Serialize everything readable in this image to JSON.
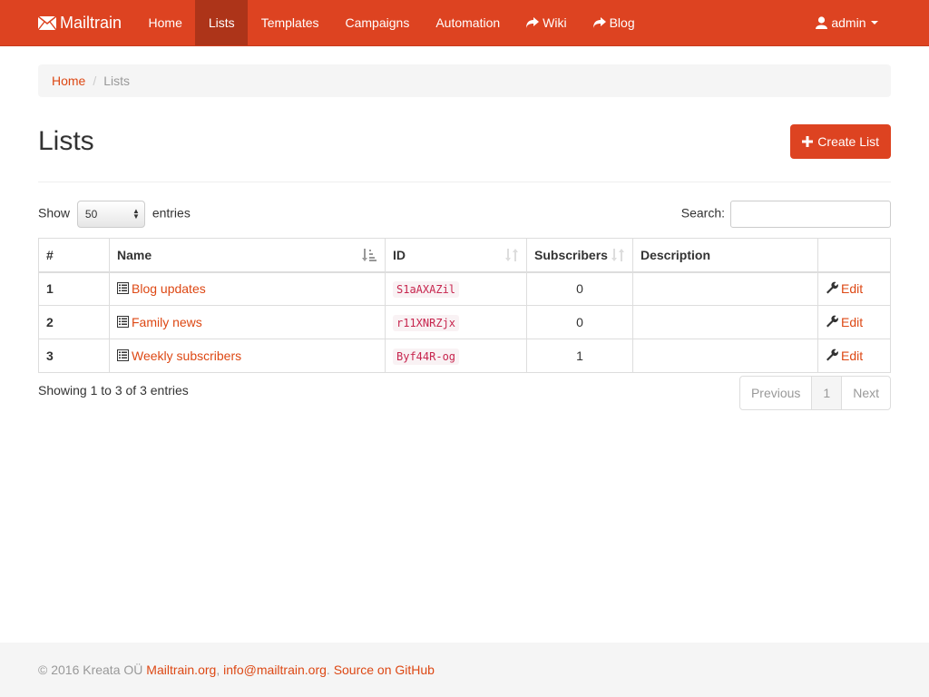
{
  "colors": {
    "brand": "#dd4321",
    "active_nav": "#ad3419",
    "link": "#dd4814"
  },
  "navbar": {
    "brand": "Mailtrain",
    "items": [
      {
        "label": "Home"
      },
      {
        "label": "Lists",
        "active": true
      },
      {
        "label": "Templates"
      },
      {
        "label": "Campaigns"
      },
      {
        "label": "Automation"
      },
      {
        "label": "Wiki",
        "icon": "share-icon"
      },
      {
        "label": "Blog",
        "icon": "share-icon"
      }
    ],
    "user": "admin"
  },
  "breadcrumb": {
    "home": "Home",
    "current": "Lists"
  },
  "page": {
    "title": "Lists",
    "create_button": "Create List"
  },
  "controls": {
    "show_label": "Show",
    "page_size": "50",
    "entries_label": "entries",
    "search_label": "Search:",
    "search_value": ""
  },
  "table": {
    "headers": [
      "#",
      "Name",
      "ID",
      "Subscribers",
      "Description",
      ""
    ],
    "rows": [
      {
        "num": "1",
        "name": "Blog updates",
        "id": "S1aAXAZil",
        "subscribers": "0",
        "description": "",
        "action": "Edit"
      },
      {
        "num": "2",
        "name": "Family news",
        "id": "r11XNRZjx",
        "subscribers": "0",
        "description": "",
        "action": "Edit"
      },
      {
        "num": "3",
        "name": "Weekly subscribers",
        "id": "Byf44R-og",
        "subscribers": "1",
        "description": "",
        "action": "Edit"
      }
    ]
  },
  "info": "Showing 1 to 3 of 3 entries",
  "pagination": {
    "previous": "Previous",
    "page": "1",
    "next": "Next"
  },
  "footer": {
    "copyright": "© 2016 Kreata OÜ",
    "site": "Mailtrain.org",
    "sep1": ",",
    "email": "info@mailtrain.org",
    "sep2": ".",
    "github": "Source on GitHub"
  }
}
